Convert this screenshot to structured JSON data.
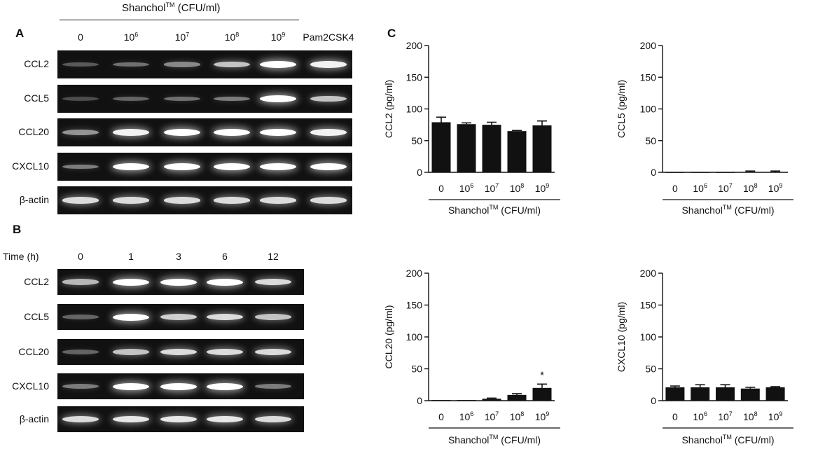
{
  "panel_a": {
    "letter": "A",
    "header_pre": "Shanchol",
    "header_sup": "TM",
    "header_post": " (CFU/ml)",
    "lanes": [
      {
        "base": "0",
        "exp": ""
      },
      {
        "base": "10",
        "exp": "6"
      },
      {
        "base": "10",
        "exp": "7"
      },
      {
        "base": "10",
        "exp": "8"
      },
      {
        "base": "10",
        "exp": "9"
      },
      {
        "base": "Pam2CSK4",
        "exp": ""
      }
    ],
    "genes": [
      "CCL2",
      "CCL5",
      "CCL20",
      "CXCL10",
      "β-actin"
    ],
    "intensity": [
      [
        0.3,
        0.4,
        0.5,
        0.75,
        1.0,
        0.95
      ],
      [
        0.25,
        0.35,
        0.4,
        0.45,
        1.0,
        0.75
      ],
      [
        0.55,
        0.95,
        1.0,
        1.0,
        1.0,
        0.95
      ],
      [
        0.45,
        1.0,
        1.0,
        1.0,
        1.0,
        1.0
      ],
      [
        0.85,
        0.85,
        0.85,
        0.85,
        0.85,
        0.85
      ]
    ]
  },
  "panel_b": {
    "letter": "B",
    "time_label": "Time (h)",
    "lanes": [
      "0",
      "1",
      "3",
      "6",
      "12"
    ],
    "genes": [
      "CCL2",
      "CCL5",
      "CCL20",
      "CXCL10",
      "β-actin"
    ],
    "intensity": [
      [
        0.7,
        1.0,
        1.0,
        1.0,
        0.85
      ],
      [
        0.35,
        1.0,
        0.8,
        0.85,
        0.75
      ],
      [
        0.35,
        0.75,
        0.85,
        0.85,
        0.85
      ],
      [
        0.45,
        1.0,
        1.0,
        1.0,
        0.45
      ],
      [
        0.85,
        0.9,
        0.9,
        0.9,
        0.85
      ]
    ]
  },
  "panel_c": {
    "letter": "C",
    "xlabel_pre": "Shanchol",
    "xlabel_sup": "TM",
    "xlabel_post": " (CFU/ml)"
  },
  "chart_data": [
    {
      "type": "bar",
      "ylabel": "CCL2 (pg/ml)",
      "categories": [
        "0",
        "10^6",
        "10^7",
        "10^8",
        "10^9"
      ],
      "values": [
        79,
        76,
        75,
        65,
        74
      ],
      "errors": [
        8,
        2,
        4,
        1,
        7
      ],
      "ylim": [
        0,
        200
      ],
      "yticks": [
        0,
        50,
        100,
        150,
        200
      ],
      "annotations": []
    },
    {
      "type": "bar",
      "ylabel": "CCL5 (pg/ml)",
      "categories": [
        "0",
        "10^6",
        "10^7",
        "10^8",
        "10^9"
      ],
      "values": [
        0,
        0,
        0,
        0.5,
        0.5
      ],
      "errors": [
        0,
        0,
        0,
        1.5,
        1.5
      ],
      "ylim": [
        0,
        200
      ],
      "yticks": [
        0,
        50,
        100,
        150,
        200
      ],
      "annotations": []
    },
    {
      "type": "bar",
      "ylabel": "CCL20 (pg/ml)",
      "categories": [
        "0",
        "10^6",
        "10^7",
        "10^8",
        "10^9"
      ],
      "values": [
        1,
        1,
        3,
        9,
        20
      ],
      "errors": [
        0,
        0,
        1,
        2,
        6
      ],
      "ylim": [
        0,
        200
      ],
      "yticks": [
        0,
        50,
        100,
        150,
        200
      ],
      "annotations": [
        {
          "category": "10^9",
          "text": "*"
        }
      ]
    },
    {
      "type": "bar",
      "ylabel": "CXCL10 (pg/ml)",
      "categories": [
        "0",
        "10^6",
        "10^7",
        "10^8",
        "10^9"
      ],
      "values": [
        21,
        21,
        21,
        19,
        21
      ],
      "errors": [
        2,
        4,
        4,
        2,
        1
      ],
      "ylim": [
        0,
        200
      ],
      "yticks": [
        0,
        50,
        100,
        150,
        200
      ],
      "annotations": []
    }
  ]
}
